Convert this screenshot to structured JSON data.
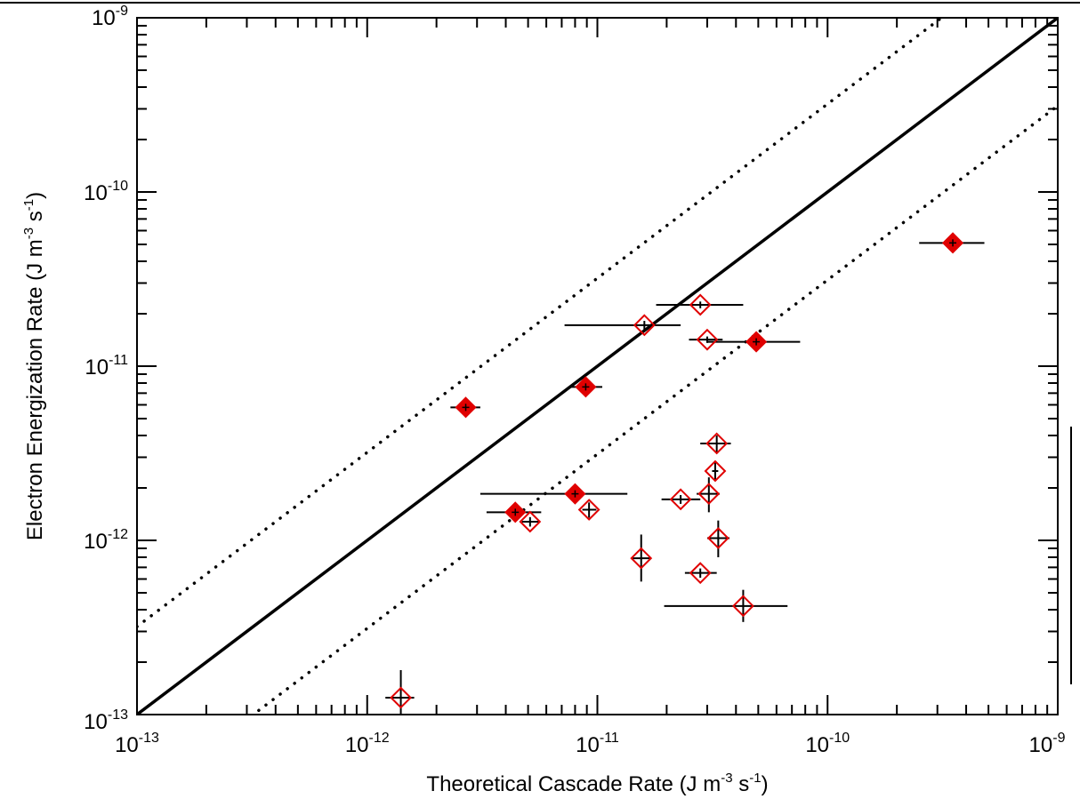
{
  "chart_data": {
    "type": "scatter",
    "title": "",
    "xlabel": "Theoretical Cascade Rate (J m^-3 s^-1)",
    "ylabel": "Electron Energization Rate (J m^-3 s^-1)",
    "xscale": "log",
    "yscale": "log",
    "xlim": [
      1e-13,
      1e-09
    ],
    "ylim": [
      1e-13,
      1e-09
    ],
    "grid": false,
    "legend": "none",
    "x_ticks": [
      1e-13,
      1e-12,
      1e-11,
      1e-10,
      1e-09
    ],
    "y_ticks": [
      1e-13,
      1e-12,
      1e-11,
      1e-10,
      1e-09
    ],
    "x_tick_labels": [
      {
        "base": "10",
        "exp": "-13"
      },
      {
        "base": "10",
        "exp": "-12"
      },
      {
        "base": "10",
        "exp": "-11"
      },
      {
        "base": "10",
        "exp": "-10"
      },
      {
        "base": "10",
        "exp": "-9"
      }
    ],
    "y_tick_labels": [
      {
        "base": "10",
        "exp": "-13"
      },
      {
        "base": "10",
        "exp": "-12"
      },
      {
        "base": "10",
        "exp": "-11"
      },
      {
        "base": "10",
        "exp": "-10"
      },
      {
        "base": "10",
        "exp": "-9"
      }
    ],
    "x_title_parts": {
      "main": "Theoretical Cascade Rate (J m",
      "exp1": "-3",
      "mid": " s",
      "exp2": "-1",
      "end": ")"
    },
    "y_title_parts": {
      "main": "Electron Energization Rate (J m",
      "exp1": "-3",
      "mid": " s",
      "exp2": "-1",
      "end": ")"
    },
    "reference_lines": [
      {
        "style": "solid",
        "factor": 1,
        "color": "#000000"
      },
      {
        "style": "dotted",
        "factor": 3.2,
        "color": "#000000"
      },
      {
        "style": "dotted",
        "factor": 0.3125,
        "color": "#000000"
      }
    ],
    "marker_color": "#e00000",
    "errorbar_color": "#000000",
    "series": [
      {
        "marker": "filled-diamond",
        "points": [
          {
            "x": 2.68e-12,
            "y": 5.8e-12,
            "xerr": [
              2.3e-12,
              3.1e-12
            ],
            "yerr": [
              5.6e-12,
              6e-12
            ]
          },
          {
            "x": 4.4e-12,
            "y": 1.45e-12,
            "xerr": [
              3.3e-12,
              5.7e-12
            ],
            "yerr": [
              1.35e-12,
              1.55e-12
            ]
          },
          {
            "x": 8e-12,
            "y": 1.85e-12,
            "xerr": [
              3.1e-12,
              1.35e-11
            ],
            "yerr": [
              1.7e-12,
              2e-12
            ]
          },
          {
            "x": 8.9e-12,
            "y": 7.6e-12,
            "xerr": [
              7.6e-12,
              1.05e-11
            ],
            "yerr": [
              7.2e-12,
              8e-12
            ]
          },
          {
            "x": 4.9e-11,
            "y": 1.38e-11,
            "xerr": [
              3e-11,
              7.6e-11
            ],
            "yerr": [
              1.3e-11,
              1.46e-11
            ]
          },
          {
            "x": 3.5e-10,
            "y": 5.1e-11,
            "xerr": [
              2.5e-10,
              4.8e-10
            ],
            "yerr": [
              4.9e-11,
              5.3e-11
            ]
          }
        ]
      },
      {
        "marker": "open-diamond",
        "points": [
          {
            "x": 1.4e-12,
            "y": 1.25e-13,
            "xerr": [
              1.2e-12,
              1.6e-12
            ],
            "yerr": [
              1e-13,
              1.8e-13
            ]
          },
          {
            "x": 5.1e-12,
            "y": 1.28e-12,
            "xerr": [
              4.7e-12,
              5.6e-12
            ],
            "yerr": [
              1.2e-12,
              1.36e-12
            ]
          },
          {
            "x": 9.2e-12,
            "y": 1.5e-12,
            "xerr": [
              8.6e-12,
              9.9e-12
            ],
            "yerr": [
              1.35e-12,
              1.65e-12
            ]
          },
          {
            "x": 1.6e-11,
            "y": 1.72e-11,
            "xerr": [
              7.2e-12,
              2.3e-11
            ],
            "yerr": [
              1.62e-11,
              1.82e-11
            ]
          },
          {
            "x": 1.55e-11,
            "y": 7.9e-13,
            "xerr": [
              1.4e-11,
              1.7e-11
            ],
            "yerr": [
              5.8e-13,
              1.08e-12
            ]
          },
          {
            "x": 2.3e-11,
            "y": 1.72e-12,
            "xerr": [
              1.9e-11,
              2.8e-11
            ],
            "yerr": [
              1.62e-12,
              1.82e-12
            ]
          },
          {
            "x": 2.8e-11,
            "y": 2.25e-11,
            "xerr": [
              1.8e-11,
              4.3e-11
            ],
            "yerr": [
              2.15e-11,
              2.35e-11
            ]
          },
          {
            "x": 2.8e-11,
            "y": 6.5e-13,
            "xerr": [
              2.4e-11,
              3.3e-11
            ],
            "yerr": [
              6.1e-13,
              6.9e-13
            ]
          },
          {
            "x": 3e-11,
            "y": 1.42e-11,
            "xerr": [
              2.5e-11,
              3.5e-11
            ],
            "yerr": [
              1.36e-11,
              1.48e-11
            ]
          },
          {
            "x": 3.05e-11,
            "y": 1.85e-12,
            "xerr": [
              2.7e-11,
              3.4e-11
            ],
            "yerr": [
              1.45e-12,
              2.3e-12
            ]
          },
          {
            "x": 3.25e-11,
            "y": 2.5e-12,
            "xerr": [
              3.15e-11,
              3.35e-11
            ],
            "yerr": [
              2.2e-12,
              2.8e-12
            ]
          },
          {
            "x": 3.3e-11,
            "y": 3.6e-12,
            "xerr": [
              2.8e-11,
              3.8e-11
            ],
            "yerr": [
              3.2e-12,
              4e-12
            ]
          },
          {
            "x": 3.35e-11,
            "y": 1.03e-12,
            "xerr": [
              3e-11,
              3.75e-11
            ],
            "yerr": [
              8e-13,
              1.3e-12
            ]
          },
          {
            "x": 4.3e-11,
            "y": 4.2e-13,
            "xerr": [
              1.95e-11,
              6.7e-11
            ],
            "yerr": [
              3.4e-13,
              5.2e-13
            ]
          }
        ]
      }
    ]
  }
}
